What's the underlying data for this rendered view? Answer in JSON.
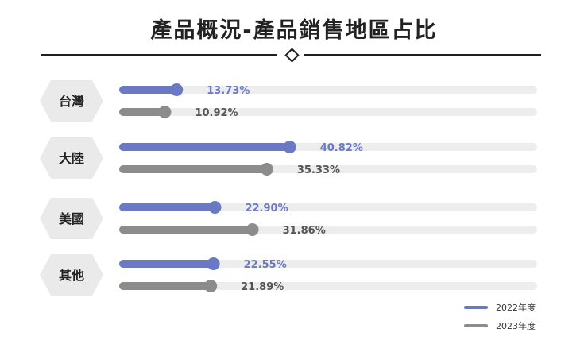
{
  "title": "產品概況-產品銷售地區占比",
  "colors": {
    "series_2022": "#6B79C4",
    "series_2023": "#8C8C8C",
    "track": "#EDEDED",
    "badge": "#EAEAEA",
    "divider": "#1F1F1F"
  },
  "chart_data": {
    "type": "bar",
    "orientation": "horizontal",
    "categories": [
      "台灣",
      "大陸",
      "美國",
      "其他"
    ],
    "series": [
      {
        "name": "2022年度",
        "values": [
          13.73,
          40.82,
          22.9,
          22.55
        ],
        "labels": [
          "13.73%",
          "40.82%",
          "22.90%",
          "22.55%"
        ]
      },
      {
        "name": "2023年度",
        "values": [
          10.92,
          35.33,
          31.86,
          21.89
        ],
        "labels": [
          "10.92%",
          "35.33%",
          "31.86%",
          "21.89%"
        ]
      }
    ],
    "xlim": [
      0,
      100
    ],
    "grid": false,
    "legend_position": "bottom-right"
  }
}
